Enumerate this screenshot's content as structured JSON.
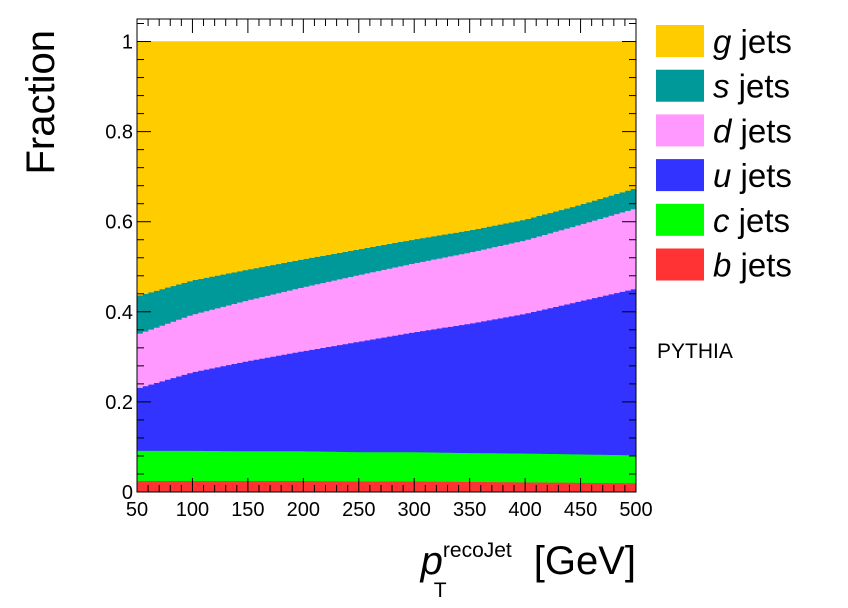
{
  "chart_data": {
    "type": "area",
    "stacked": true,
    "x": [
      50,
      100,
      150,
      200,
      250,
      300,
      350,
      400,
      450,
      500
    ],
    "xlim": [
      50,
      500
    ],
    "ylim": [
      0,
      1.05
    ],
    "xticks": [
      "50",
      "100",
      "150",
      "200",
      "250",
      "300",
      "350",
      "400",
      "450",
      "500"
    ],
    "yticks": [
      "0",
      "0.2",
      "0.4",
      "0.6",
      "0.8",
      "1"
    ],
    "xlabel": {
      "main": "p",
      "sub": "T",
      "sup": "recoJet",
      "unit": " [GeV]"
    },
    "ylabel": "Fraction",
    "legend_position": "right",
    "series": [
      {
        "name": "b",
        "color": "#ff3333",
        "values": [
          0.025,
          0.025,
          0.025,
          0.025,
          0.024,
          0.024,
          0.023,
          0.022,
          0.021,
          0.02
        ]
      },
      {
        "name": "c",
        "color": "#00ff00",
        "values": [
          0.067,
          0.067,
          0.066,
          0.066,
          0.065,
          0.065,
          0.064,
          0.064,
          0.063,
          0.062
        ]
      },
      {
        "name": "u",
        "color": "#3333ff",
        "values": [
          0.138,
          0.174,
          0.2,
          0.222,
          0.245,
          0.266,
          0.287,
          0.31,
          0.34,
          0.37
        ]
      },
      {
        "name": "d",
        "color": "#ff99ff",
        "values": [
          0.12,
          0.128,
          0.135,
          0.142,
          0.148,
          0.153,
          0.158,
          0.163,
          0.17,
          0.178
        ]
      },
      {
        "name": "s",
        "color": "#009999",
        "values": [
          0.085,
          0.076,
          0.068,
          0.062,
          0.057,
          0.053,
          0.049,
          0.046,
          0.044,
          0.045
        ]
      },
      {
        "name": "g",
        "color": "#ffcc00",
        "values": [
          0.565,
          0.53,
          0.506,
          0.483,
          0.461,
          0.439,
          0.419,
          0.395,
          0.362,
          0.325
        ]
      }
    ],
    "legend_suffix": " jets",
    "annotation": "PYTHIA"
  }
}
